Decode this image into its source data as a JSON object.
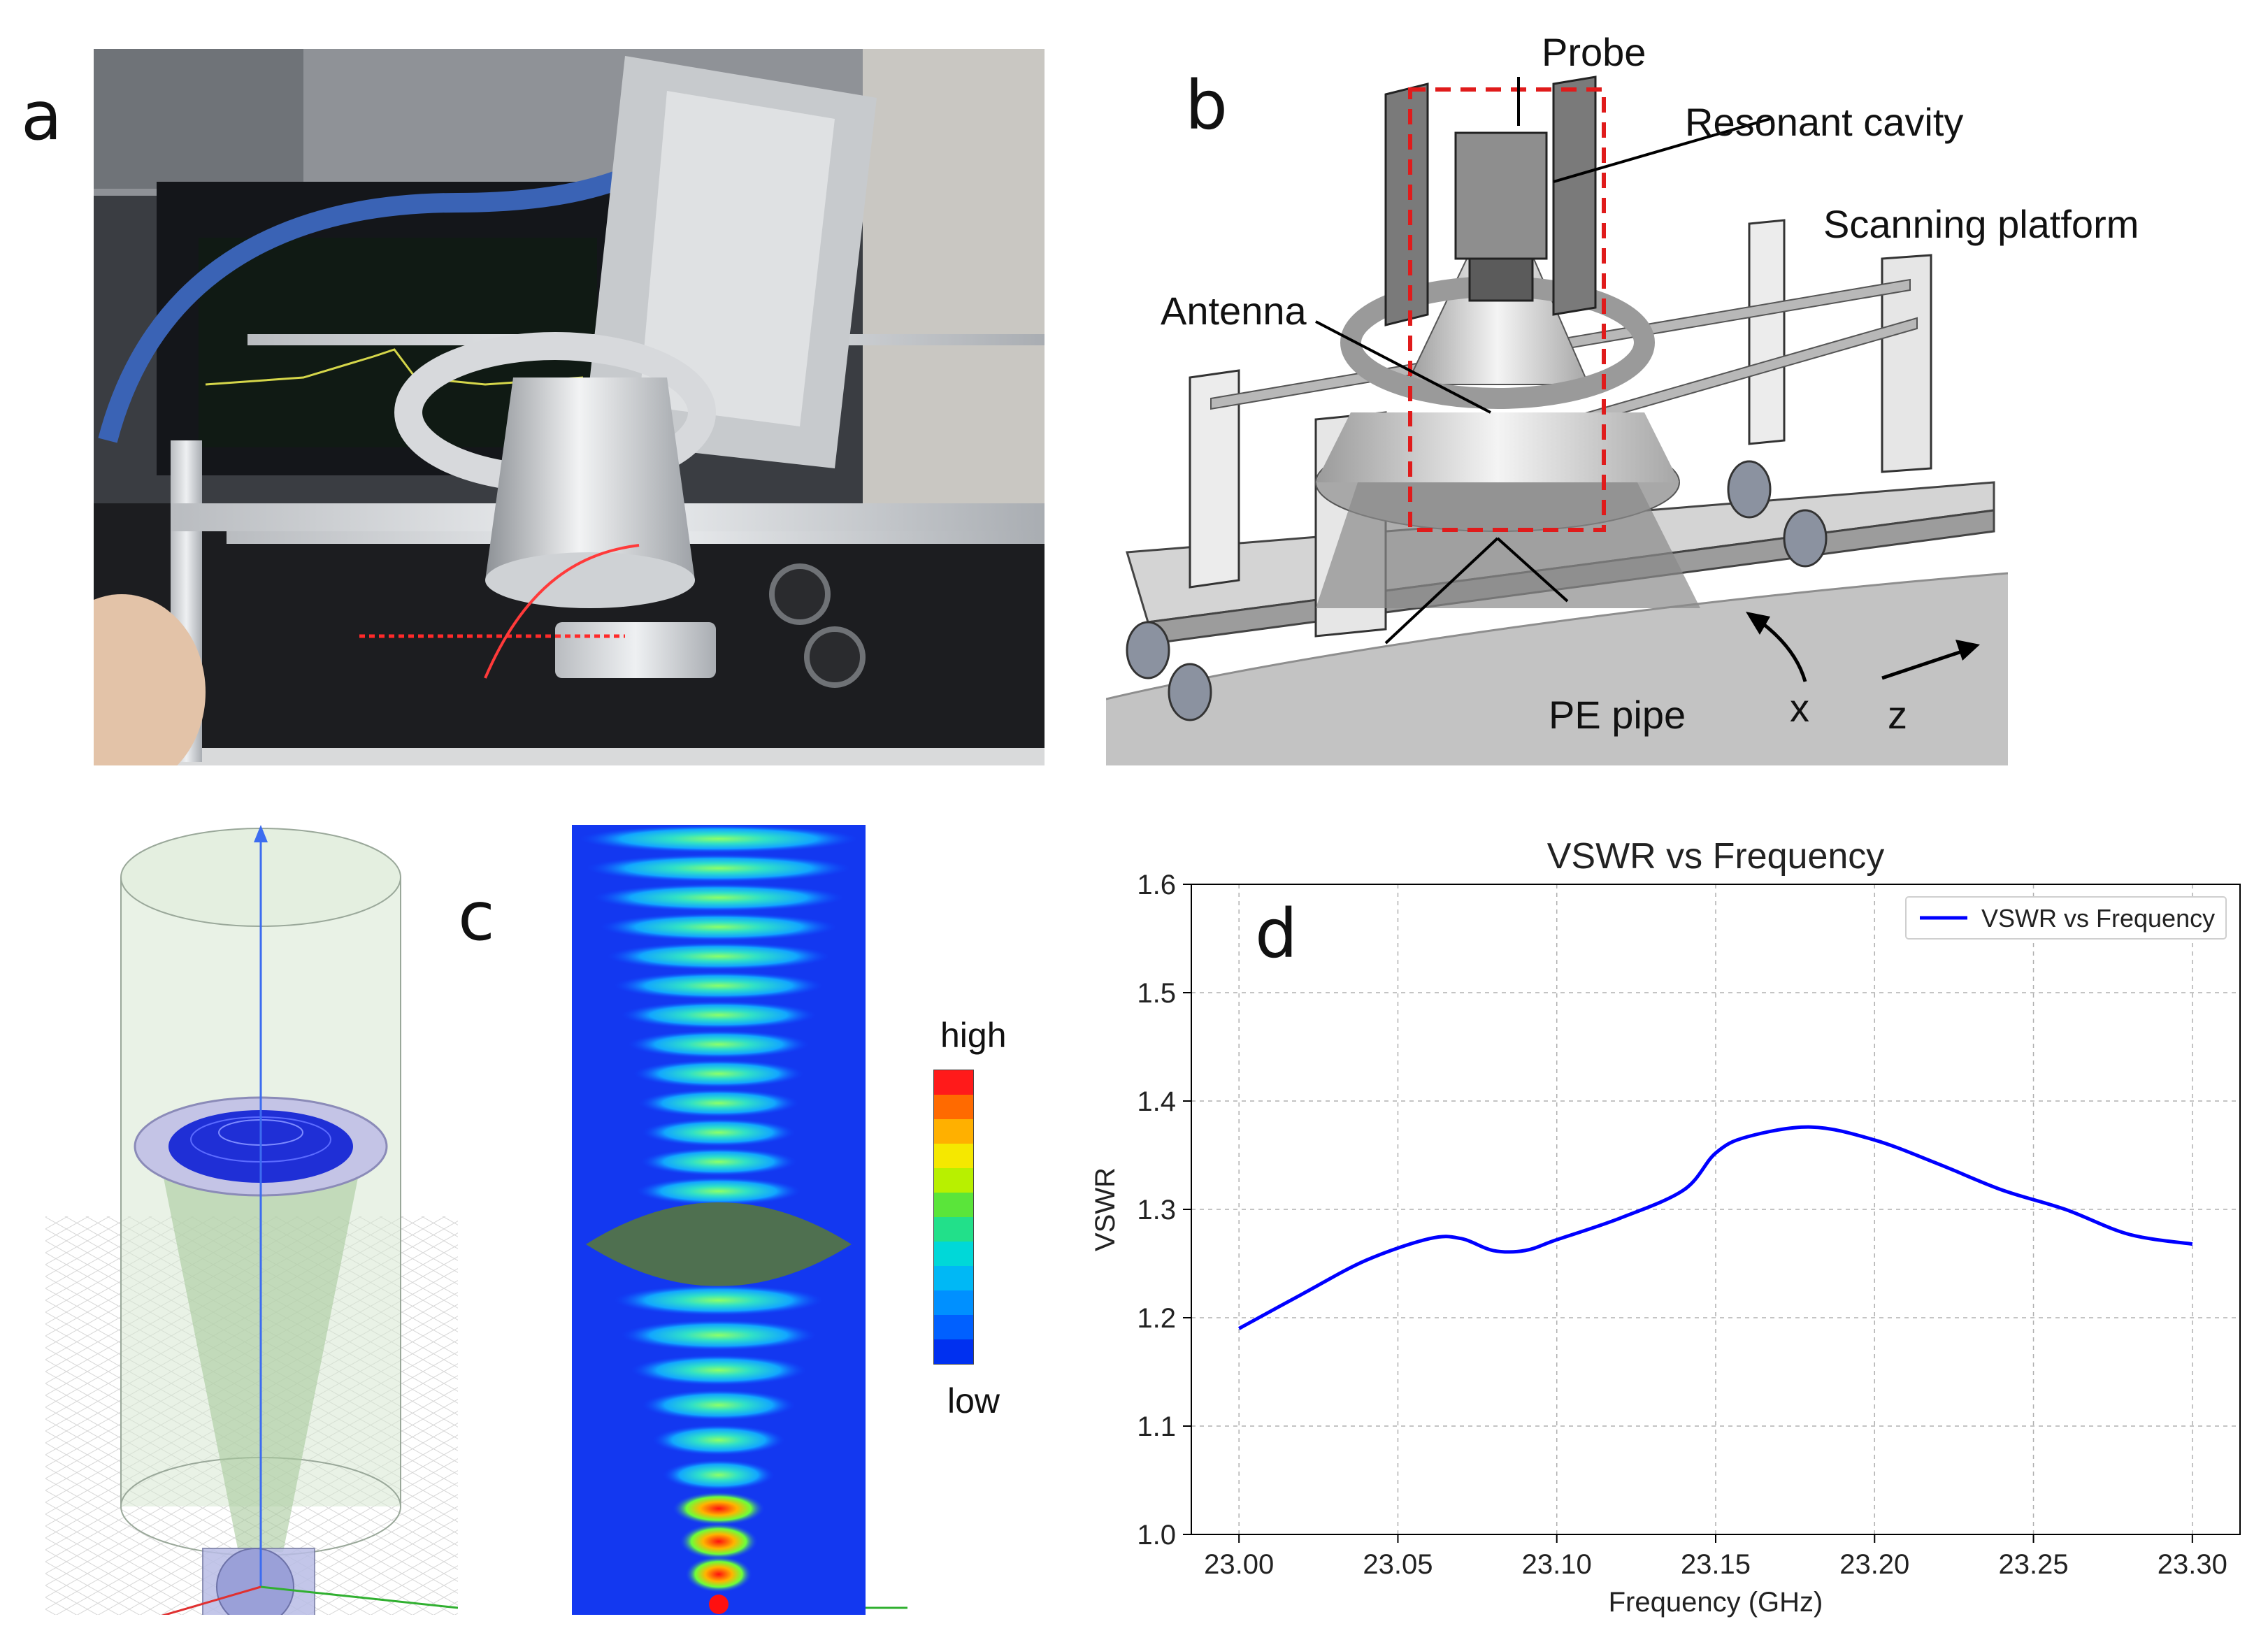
{
  "panels": {
    "a": {
      "letter": "a"
    },
    "b": {
      "letter": "b",
      "labels": {
        "probe": "Probe",
        "resonant_cavity": "Resonant cavity",
        "scanning_platform": "Scanning platform",
        "antenna": "Antenna",
        "pe_pipe": "PE pipe",
        "x_axis": "x",
        "z_axis": "z"
      }
    },
    "c": {
      "letter": "c",
      "colorbar": {
        "high": "high",
        "low": "low",
        "colors": [
          "#ff1a1a",
          "#ff6a00",
          "#ffb000",
          "#f5e800",
          "#b8f000",
          "#5ae53a",
          "#22e08a",
          "#00d8d8",
          "#00b8f5",
          "#0090ff",
          "#0060ff",
          "#0030f0"
        ]
      }
    },
    "d": {
      "letter": "d"
    }
  },
  "chart_data": {
    "type": "line",
    "title": "VSWR vs Frequency",
    "xlabel": "Frequency (GHz)",
    "ylabel": "VSWR",
    "xlim": [
      22.985,
      23.315
    ],
    "ylim": [
      1.0,
      1.6
    ],
    "xticks": [
      23.0,
      23.05,
      23.1,
      23.15,
      23.2,
      23.25,
      23.3
    ],
    "yticks": [
      1.0,
      1.1,
      1.2,
      1.3,
      1.4,
      1.5,
      1.6
    ],
    "xtick_labels": [
      "23.00",
      "23.05",
      "23.10",
      "23.15",
      "23.20",
      "23.25",
      "23.30"
    ],
    "ytick_labels": [
      "1.0",
      "1.1",
      "1.2",
      "1.3",
      "1.4",
      "1.5",
      "1.6"
    ],
    "grid": true,
    "legend": "top-right",
    "series": [
      {
        "name": "VSWR vs Frequency",
        "color": "#0000ff",
        "x": [
          23.0,
          23.02,
          23.04,
          23.06,
          23.07,
          23.08,
          23.09,
          23.1,
          23.12,
          23.14,
          23.15,
          23.16,
          23.18,
          23.2,
          23.22,
          23.24,
          23.26,
          23.28,
          23.3
        ],
        "y": [
          1.19,
          1.222,
          1.253,
          1.273,
          1.273,
          1.262,
          1.262,
          1.272,
          1.292,
          1.318,
          1.352,
          1.367,
          1.376,
          1.364,
          1.342,
          1.318,
          1.3,
          1.277,
          1.268
        ]
      }
    ]
  }
}
